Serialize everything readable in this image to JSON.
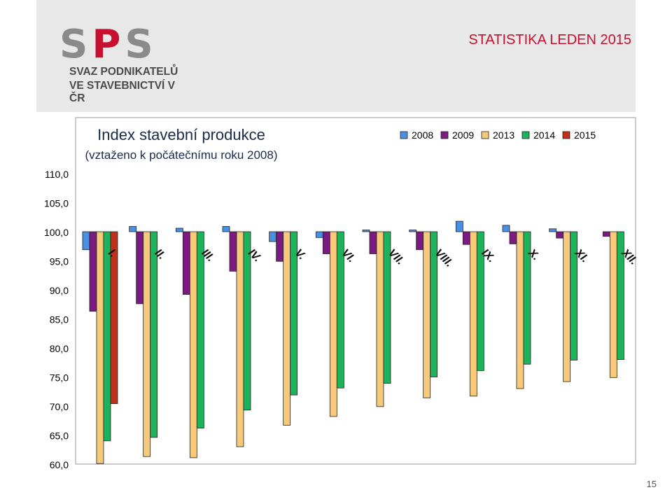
{
  "header": {
    "title": "STATISTIKA LEDEN 2015",
    "logo_letters": [
      "S",
      "P",
      "S"
    ],
    "logo_line1": "SVAZ PODNIKATELŮ",
    "logo_line2": "VE STAVEBNICTVÍ V ČR",
    "logo_colors": [
      "#8a8a8a",
      "#c8102e",
      "#8a8a8a"
    ]
  },
  "page_number": "15",
  "chart_data": {
    "type": "bar",
    "title": "Index stavební produkce",
    "subtitle": "(vztaženo k počátečnímu roku 2008)",
    "baseline": 100.0,
    "ylim": [
      60,
      110
    ],
    "yticks": [
      "110,0",
      "105,0",
      "100,0",
      "95,0",
      "90,0",
      "85,0",
      "80,0",
      "75,0",
      "70,0",
      "65,0",
      "60,0"
    ],
    "ytick_values": [
      110,
      105,
      100,
      95,
      90,
      85,
      80,
      75,
      70,
      65,
      60
    ],
    "legend_position": "top-right",
    "categories": [
      "I.",
      "II.",
      "III.",
      "IV.",
      "V.",
      "VI.",
      "VII.",
      "VIII.",
      "IX.",
      "X.",
      "XI.",
      "XII."
    ],
    "series": [
      {
        "name": "2008",
        "color": "#4a90e2",
        "values": [
          96.9,
          100.9,
          100.6,
          100.9,
          98.3,
          99.0,
          100.3,
          100.3,
          101.8,
          101.1,
          100.5,
          null
        ]
      },
      {
        "name": "2009",
        "color": "#7b1a80",
        "values": [
          86.3,
          87.6,
          89.2,
          93.2,
          94.9,
          96.2,
          96.2,
          96.9,
          97.8,
          97.9,
          98.9,
          99.2
        ]
      },
      {
        "name": "2013",
        "color": "#f7c97b",
        "values": [
          60.1,
          61.3,
          61.1,
          63.0,
          66.7,
          68.2,
          69.9,
          71.4,
          71.7,
          73.0,
          74.2,
          74.9
        ]
      },
      {
        "name": "2014",
        "color": "#1db35a",
        "values": [
          64.0,
          64.6,
          66.2,
          69.3,
          71.9,
          73.1,
          73.9,
          75.0,
          76.1,
          77.2,
          77.9,
          78.0
        ]
      },
      {
        "name": "2015",
        "color": "#c0311b",
        "values": [
          70.4,
          null,
          null,
          null,
          null,
          null,
          null,
          null,
          null,
          null,
          null,
          null
        ]
      }
    ]
  }
}
